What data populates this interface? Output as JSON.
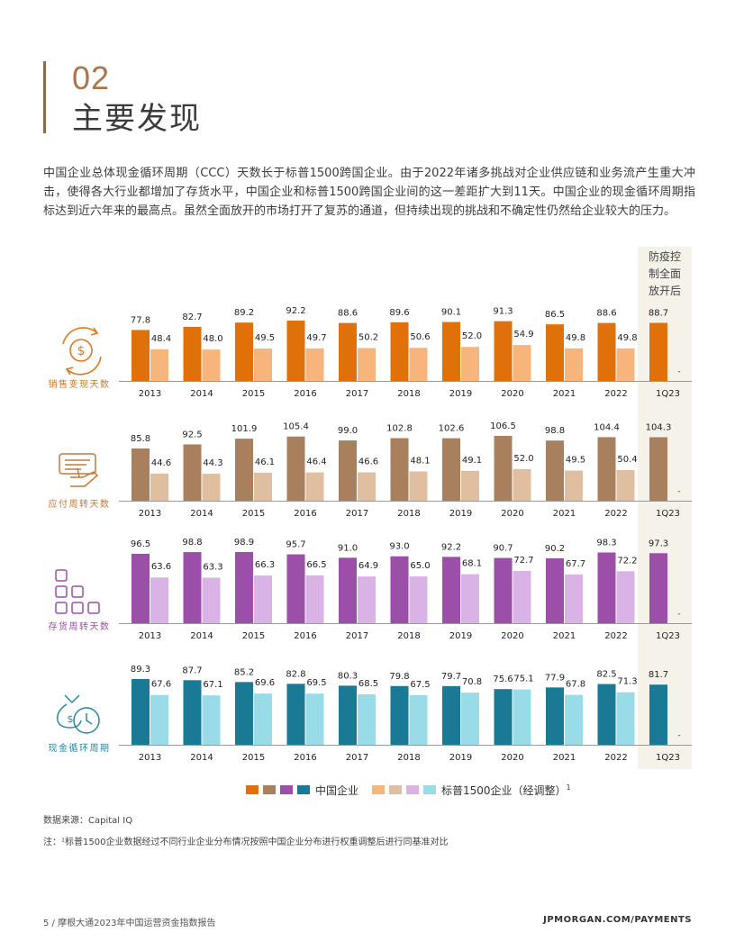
{
  "header": {
    "number": "02",
    "title": "主要发现"
  },
  "intro": "中国企业总体现金循环周期（CCC）天数长于标普1500跨国企业。由于2022年诸多挑战对企业供应链和业务流产生重大冲击，使得各大行业都增加了存货水平，中国企业和标普1500跨国企业间的这一差距扩大到11天。中国企业的现金循环周期指标达到近六年来的最高点。虽然全面放开的市场打开了复苏的通道，但持续出现的挑战和不确定性仍然给企业较大的压力。",
  "annotation": {
    "lines": [
      "防疫控",
      "制全面",
      "放开后"
    ]
  },
  "chart_data": [
    {
      "type": "bar",
      "ylabel": "销售变现天数",
      "icon": "cycle-dollar-icon",
      "colors": {
        "china": "#e0700a",
        "sp": "#f7b57c",
        "label": "#c97a2c"
      },
      "categories": [
        "2013",
        "2014",
        "2015",
        "2016",
        "2017",
        "2018",
        "2019",
        "2020",
        "2021",
        "2022",
        "1Q23"
      ],
      "series": [
        {
          "name": "中国企业",
          "values": [
            77.8,
            82.7,
            89.2,
            92.2,
            88.6,
            89.6,
            90.1,
            91.3,
            86.5,
            88.6,
            88.7
          ]
        },
        {
          "name": "标普1500企业（经调整）",
          "values": [
            48.4,
            48.0,
            49.5,
            49.7,
            50.2,
            50.6,
            52.0,
            54.9,
            49.8,
            49.8,
            null
          ]
        }
      ],
      "missing_label": "-"
    },
    {
      "type": "bar",
      "ylabel": "应付周转天数",
      "icon": "invoice-hand-icon",
      "colors": {
        "china": "#a8805e",
        "sp": "#dfbf9f",
        "label": "#c27a3a"
      },
      "categories": [
        "2013",
        "2014",
        "2015",
        "2016",
        "2017",
        "2018",
        "2019",
        "2020",
        "2021",
        "2022",
        "1Q23"
      ],
      "series": [
        {
          "name": "中国企业",
          "values": [
            85.8,
            92.5,
            101.9,
            105.4,
            99.0,
            102.8,
            102.6,
            106.5,
            98.8,
            104.4,
            104.3
          ]
        },
        {
          "name": "标普1500企业（经调整）",
          "values": [
            44.6,
            44.3,
            46.1,
            46.4,
            46.6,
            48.1,
            49.1,
            52.0,
            49.5,
            50.4,
            null
          ]
        }
      ],
      "missing_label": "-"
    },
    {
      "type": "bar",
      "ylabel": "存货周转天数",
      "icon": "inventory-boxes-icon",
      "colors": {
        "china": "#9b4fa8",
        "sp": "#d9b3e6",
        "label": "#9b4fa8"
      },
      "categories": [
        "2013",
        "2014",
        "2015",
        "2016",
        "2017",
        "2018",
        "2019",
        "2020",
        "2021",
        "2022",
        "1Q23"
      ],
      "series": [
        {
          "name": "中国企业",
          "values": [
            96.5,
            98.8,
            98.9,
            95.7,
            91.0,
            93.0,
            92.2,
            90.7,
            90.2,
            98.3,
            97.3
          ]
        },
        {
          "name": "标普1500企业（经调整）",
          "values": [
            63.6,
            63.3,
            66.3,
            66.5,
            64.9,
            65.0,
            68.1,
            72.7,
            67.7,
            72.2,
            null
          ]
        }
      ],
      "missing_label": "-"
    },
    {
      "type": "bar",
      "ylabel": "现金循环周期",
      "icon": "money-clock-icon",
      "colors": {
        "china": "#1a7a96",
        "sp": "#9adbe8",
        "label": "#2487a6"
      },
      "categories": [
        "2013",
        "2014",
        "2015",
        "2016",
        "2017",
        "2018",
        "2019",
        "2020",
        "2021",
        "2022",
        "1Q23"
      ],
      "series": [
        {
          "name": "中国企业",
          "values": [
            89.3,
            87.7,
            85.2,
            82.8,
            80.3,
            79.8,
            79.7,
            75.6,
            77.9,
            82.5,
            81.7
          ]
        },
        {
          "name": "标普1500企业（经调整）",
          "values": [
            67.6,
            67.1,
            69.6,
            69.5,
            68.5,
            67.5,
            70.8,
            75.1,
            67.8,
            71.3,
            null
          ]
        }
      ],
      "missing_label": "-"
    }
  ],
  "legend": {
    "china_label": "中国企业",
    "sp_label": "标普1500企业（经调整）",
    "sp_sup": "1",
    "china_colors": [
      "#e0700a",
      "#a8805e",
      "#9b4fa8",
      "#1a7a96"
    ],
    "sp_colors": [
      "#f7b57c",
      "#dfbf9f",
      "#d9b3e6",
      "#9adbe8"
    ]
  },
  "source": "数据来源：Capital IQ",
  "note": "注：¹标普1500企业数据经过不同行业企业分布情况按照中国企业分布进行权重调整后进行同基准对比",
  "footer": {
    "left": "5    /     摩根大通2023年中国运营资金指数报告",
    "right": "JPMORGAN.COM/PAYMENTS"
  }
}
